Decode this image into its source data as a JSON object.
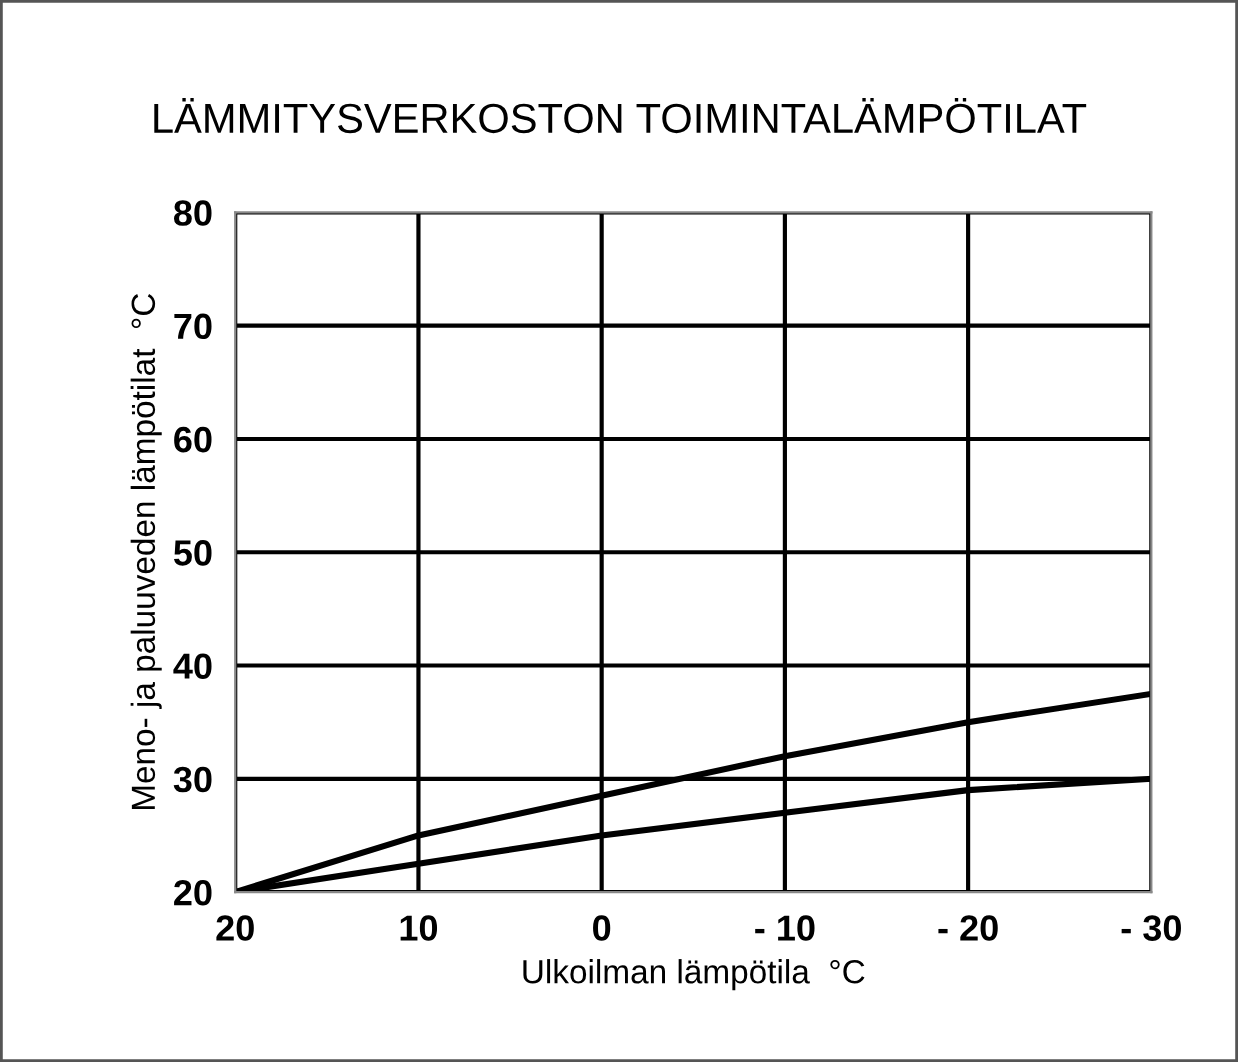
{
  "chart_data": {
    "type": "line",
    "title": "LÄMMITYSVERKOSTON TOIMINTALÄMPÖTILAT",
    "xlabel": "Ulkoilman lämpötila  °C",
    "ylabel": "Meno- ja paluuveden lämpötilat  °C",
    "x": [
      20,
      10,
      0,
      -10,
      -20,
      -30
    ],
    "series": [
      {
        "color": "#000000",
        "values": [
          20,
          25,
          28.5,
          32,
          35,
          37.5
        ]
      },
      {
        "color": "#000000",
        "values": [
          20,
          22.5,
          25,
          27,
          29,
          30
        ]
      }
    ],
    "xlim": [
      20,
      -30
    ],
    "xticks": [
      20,
      10,
      0,
      {
        "value": -10,
        "label": "- 10"
      },
      {
        "value": -20,
        "label": "- 20"
      },
      {
        "value": -30,
        "label": "- 30"
      }
    ],
    "ylim": [
      20,
      80
    ],
    "yticks": [
      20,
      30,
      40,
      50,
      60,
      70,
      80
    ],
    "grid": true,
    "marker": "none",
    "line_style": "solid"
  }
}
